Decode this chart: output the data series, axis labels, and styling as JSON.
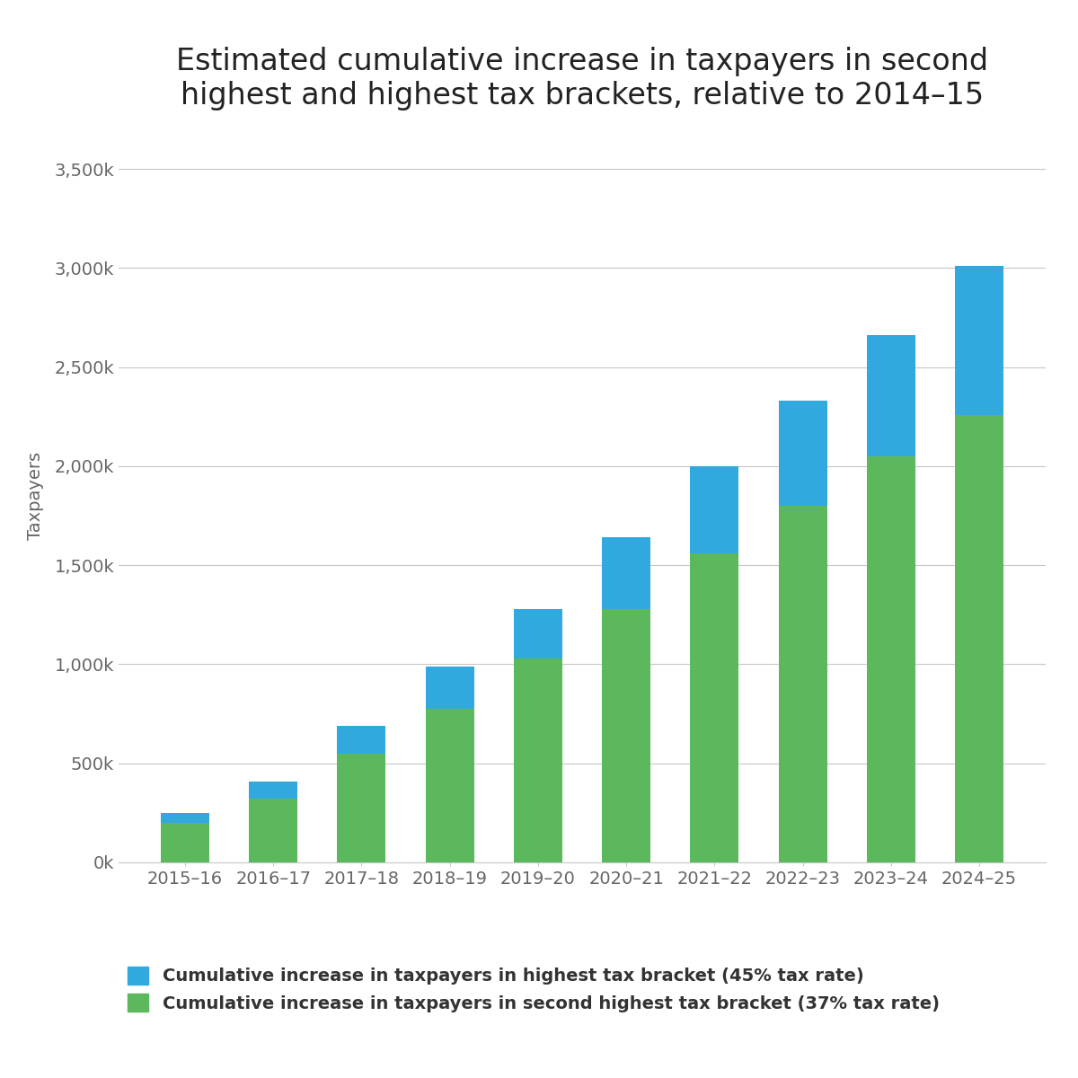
{
  "categories": [
    "2015–16",
    "2016–17",
    "2017–18",
    "2018–19",
    "2019–20",
    "2020–21",
    "2021–22",
    "2022–23",
    "2023–24",
    "2024–25"
  ],
  "green_values": [
    200000,
    320000,
    550000,
    775000,
    1030000,
    1280000,
    1560000,
    1800000,
    2050000,
    2260000
  ],
  "blue_values": [
    50000,
    90000,
    140000,
    215000,
    250000,
    360000,
    440000,
    530000,
    610000,
    750000
  ],
  "green_color": "#5cb85c",
  "blue_color": "#31a9de",
  "title_line1": "Estimated cumulative increase in taxpayers in second",
  "title_line2": "highest and highest tax brackets, relative to 2014–15",
  "ylabel": "Taxpayers",
  "yticks": [
    0,
    500000,
    1000000,
    1500000,
    2000000,
    2500000,
    3000000,
    3500000
  ],
  "ytick_labels": [
    "0k",
    "500k",
    "1,000k",
    "1,500k",
    "2,000k",
    "2,500k",
    "3,000k",
    "3,500k"
  ],
  "ylim": [
    0,
    3700000
  ],
  "legend_blue": "Cumulative increase in taxpayers in highest tax bracket (45% tax rate)",
  "legend_green": "Cumulative increase in taxpayers in second highest tax bracket (37% tax rate)",
  "background_color": "#ffffff",
  "grid_color": "#c8c8c8",
  "title_fontsize": 24,
  "axis_fontsize": 14,
  "tick_fontsize": 14,
  "legend_fontsize": 14,
  "bar_width": 0.55
}
